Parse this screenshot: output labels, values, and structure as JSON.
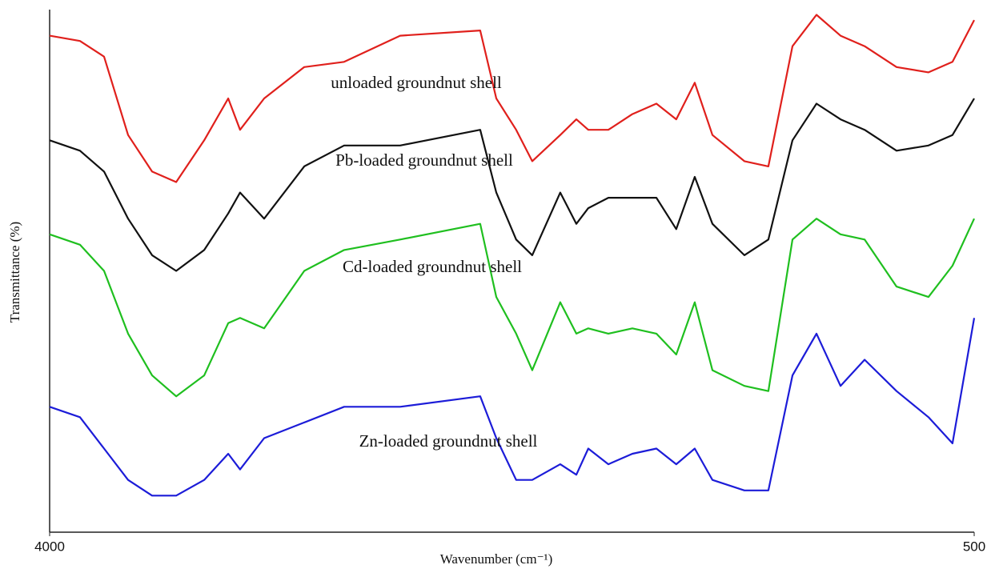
{
  "chart_data": {
    "type": "line",
    "x_label": "Wavenumber (cm⁻¹)",
    "y_label": "Transmittance (%)",
    "xlim": [
      4000,
      500
    ],
    "xticks": [
      4000,
      500
    ],
    "ylim": [
      0,
      100
    ],
    "annotations": [
      "unloaded groundnut shell",
      "Pb-loaded groundnut shell",
      "Cd-loaded groundnut shell",
      "Zn-loaded groundnut shell"
    ],
    "x": [
      4000,
      3885,
      3794,
      3703,
      3612,
      3521,
      3415,
      3324,
      3279,
      3188,
      3036,
      2885,
      2673,
      2370,
      2309,
      2234,
      2173,
      2067,
      2006,
      1961,
      1885,
      1794,
      1703,
      1628,
      1558,
      1491,
      1370,
      1279,
      1188,
      1097,
      1006,
      915,
      794,
      673,
      582,
      500
    ],
    "series": [
      {
        "color": "#e0201c",
        "values": [
          95,
          94,
          91,
          76,
          69,
          67,
          75,
          83,
          77,
          83,
          89,
          90,
          95,
          96,
          83,
          77,
          71,
          76,
          79,
          77,
          77,
          80,
          82,
          79,
          86,
          76,
          71,
          70,
          93,
          99,
          95,
          93,
          89,
          88,
          90,
          98
        ]
      },
      {
        "color": "#111111",
        "values": [
          75,
          73,
          69,
          60,
          53,
          50,
          54,
          61,
          65,
          60,
          70,
          74,
          74,
          77,
          65,
          56,
          53,
          65,
          59,
          62,
          64,
          64,
          64,
          58,
          68,
          59,
          53,
          56,
          75,
          82,
          79,
          77,
          73,
          74,
          76,
          83
        ]
      },
      {
        "color": "#1fbf1f",
        "values": [
          57,
          55,
          50,
          38,
          30,
          26,
          30,
          40,
          41,
          39,
          50,
          54,
          56,
          59,
          45,
          38,
          31,
          44,
          38,
          39,
          38,
          39,
          38,
          34,
          44,
          31,
          28,
          27,
          56,
          60,
          57,
          56,
          47,
          45,
          51,
          60
        ]
      },
      {
        "color": "#1c1cd8",
        "values": [
          24,
          22,
          16,
          10,
          7,
          7,
          10,
          15,
          12,
          18,
          21,
          24,
          24,
          26,
          18,
          10,
          10,
          13,
          11,
          16,
          13,
          15,
          16,
          13,
          16,
          10,
          8,
          8,
          30,
          38,
          28,
          33,
          27,
          22,
          17,
          41
        ]
      }
    ]
  }
}
